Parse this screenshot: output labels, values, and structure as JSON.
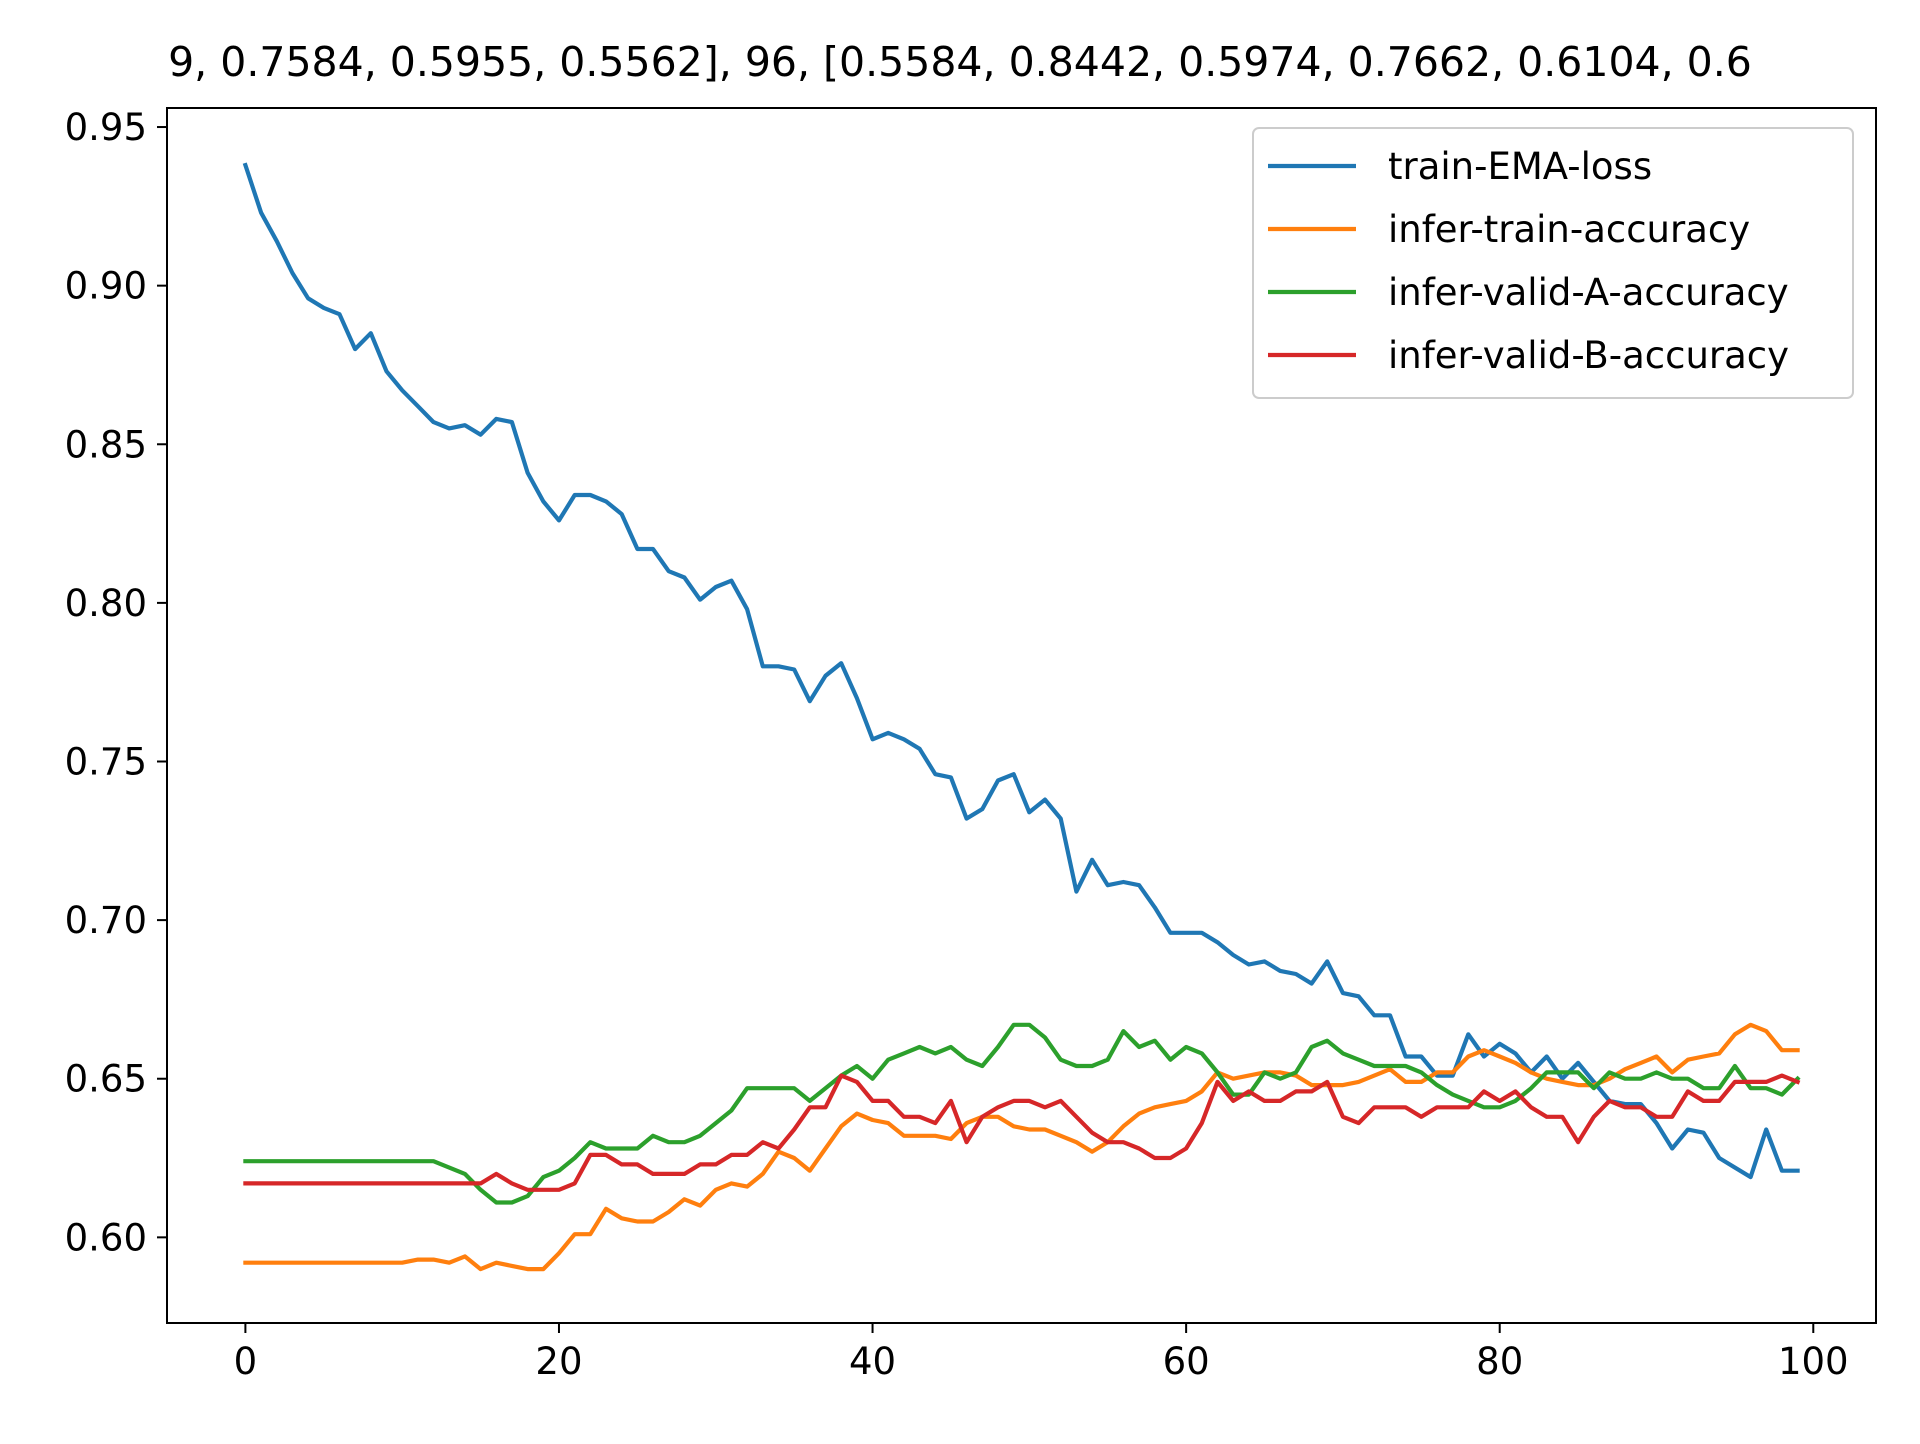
{
  "colors": {
    "series": [
      "#1f77b4",
      "#ff7f0e",
      "#2ca02c",
      "#d62728"
    ],
    "axis": "#000000",
    "legend_border": "#cccccc",
    "background": "#ffffff"
  },
  "chart_data": {
    "type": "line",
    "title": "9, 0.7584, 0.5955, 0.5562], 96, [0.5584, 0.8442, 0.5974, 0.7662, 0.6104, 0.6",
    "xlabel": "",
    "ylabel": "",
    "xlim": [
      -5,
      104
    ],
    "ylim": [
      0.573,
      0.956
    ],
    "xticks": [
      0,
      20,
      40,
      60,
      80,
      100
    ],
    "xtick_labels": [
      "0",
      "20",
      "40",
      "60",
      "80",
      "100"
    ],
    "yticks": [
      0.6,
      0.65,
      0.7,
      0.75,
      0.8,
      0.85,
      0.9,
      0.95
    ],
    "ytick_labels": [
      "0.60",
      "0.65",
      "0.70",
      "0.75",
      "0.80",
      "0.85",
      "0.90",
      "0.95"
    ],
    "grid": false,
    "legend_position": "top-right",
    "x": [
      0,
      1,
      2,
      3,
      4,
      5,
      6,
      7,
      8,
      9,
      10,
      11,
      12,
      13,
      14,
      15,
      16,
      17,
      18,
      19,
      20,
      21,
      22,
      23,
      24,
      25,
      26,
      27,
      28,
      29,
      30,
      31,
      32,
      33,
      34,
      35,
      36,
      37,
      38,
      39,
      40,
      41,
      42,
      43,
      44,
      45,
      46,
      47,
      48,
      49,
      50,
      51,
      52,
      53,
      54,
      55,
      56,
      57,
      58,
      59,
      60,
      61,
      62,
      63,
      64,
      65,
      66,
      67,
      68,
      69,
      70,
      71,
      72,
      73,
      74,
      75,
      76,
      77,
      78,
      79,
      80,
      81,
      82,
      83,
      84,
      85,
      86,
      87,
      88,
      89,
      90,
      91,
      92,
      93,
      94,
      95,
      96,
      97,
      98,
      99
    ],
    "series": [
      {
        "name": "train-EMA-loss",
        "values": [
          0.938,
          0.923,
          0.914,
          0.904,
          0.896,
          0.893,
          0.891,
          0.88,
          0.885,
          0.873,
          0.867,
          0.862,
          0.857,
          0.855,
          0.856,
          0.853,
          0.858,
          0.857,
          0.841,
          0.832,
          0.826,
          0.834,
          0.834,
          0.832,
          0.828,
          0.817,
          0.817,
          0.81,
          0.808,
          0.801,
          0.805,
          0.807,
          0.798,
          0.78,
          0.78,
          0.779,
          0.769,
          0.777,
          0.781,
          0.77,
          0.757,
          0.759,
          0.757,
          0.754,
          0.746,
          0.745,
          0.732,
          0.735,
          0.744,
          0.746,
          0.734,
          0.738,
          0.732,
          0.709,
          0.719,
          0.711,
          0.712,
          0.711,
          0.704,
          0.696,
          0.696,
          0.696,
          0.693,
          0.689,
          0.686,
          0.687,
          0.684,
          0.683,
          0.68,
          0.687,
          0.677,
          0.676,
          0.67,
          0.67,
          0.657,
          0.657,
          0.651,
          0.651,
          0.664,
          0.657,
          0.661,
          0.658,
          0.652,
          0.657,
          0.65,
          0.655,
          0.649,
          0.643,
          0.642,
          0.642,
          0.636,
          0.628,
          0.634,
          0.633,
          0.625,
          0.622,
          0.619,
          0.634,
          0.621,
          0.621
        ]
      },
      {
        "name": "infer-train-accuracy",
        "values": [
          0.592,
          0.592,
          0.592,
          0.592,
          0.592,
          0.592,
          0.592,
          0.592,
          0.592,
          0.592,
          0.592,
          0.593,
          0.593,
          0.592,
          0.594,
          0.59,
          0.592,
          0.591,
          0.59,
          0.59,
          0.595,
          0.601,
          0.601,
          0.609,
          0.606,
          0.605,
          0.605,
          0.608,
          0.612,
          0.61,
          0.615,
          0.617,
          0.616,
          0.62,
          0.627,
          0.625,
          0.621,
          0.628,
          0.635,
          0.639,
          0.637,
          0.636,
          0.632,
          0.632,
          0.632,
          0.631,
          0.636,
          0.638,
          0.638,
          0.635,
          0.634,
          0.634,
          0.632,
          0.63,
          0.627,
          0.63,
          0.635,
          0.639,
          0.641,
          0.642,
          0.643,
          0.646,
          0.652,
          0.65,
          0.651,
          0.652,
          0.652,
          0.651,
          0.648,
          0.648,
          0.648,
          0.649,
          0.651,
          0.653,
          0.649,
          0.649,
          0.652,
          0.652,
          0.657,
          0.659,
          0.657,
          0.655,
          0.652,
          0.65,
          0.649,
          0.648,
          0.648,
          0.65,
          0.653,
          0.655,
          0.657,
          0.652,
          0.656,
          0.657,
          0.658,
          0.664,
          0.667,
          0.665,
          0.659,
          0.659
        ]
      },
      {
        "name": "infer-valid-A-accuracy",
        "values": [
          0.624,
          0.624,
          0.624,
          0.624,
          0.624,
          0.624,
          0.624,
          0.624,
          0.624,
          0.624,
          0.624,
          0.624,
          0.624,
          0.622,
          0.62,
          0.615,
          0.611,
          0.611,
          0.613,
          0.619,
          0.621,
          0.625,
          0.63,
          0.628,
          0.628,
          0.628,
          0.632,
          0.63,
          0.63,
          0.632,
          0.636,
          0.64,
          0.647,
          0.647,
          0.647,
          0.647,
          0.643,
          0.647,
          0.651,
          0.654,
          0.65,
          0.656,
          0.658,
          0.66,
          0.658,
          0.66,
          0.656,
          0.654,
          0.66,
          0.667,
          0.667,
          0.663,
          0.656,
          0.654,
          0.654,
          0.656,
          0.665,
          0.66,
          0.662,
          0.656,
          0.66,
          0.658,
          0.652,
          0.645,
          0.645,
          0.652,
          0.65,
          0.652,
          0.66,
          0.662,
          0.658,
          0.656,
          0.654,
          0.654,
          0.654,
          0.652,
          0.648,
          0.645,
          0.643,
          0.641,
          0.641,
          0.643,
          0.647,
          0.652,
          0.652,
          0.652,
          0.647,
          0.652,
          0.65,
          0.65,
          0.652,
          0.65,
          0.65,
          0.647,
          0.647,
          0.654,
          0.647,
          0.647,
          0.645,
          0.65
        ]
      },
      {
        "name": "infer-valid-B-accuracy",
        "values": [
          0.617,
          0.617,
          0.617,
          0.617,
          0.617,
          0.617,
          0.617,
          0.617,
          0.617,
          0.617,
          0.617,
          0.617,
          0.617,
          0.617,
          0.617,
          0.617,
          0.62,
          0.617,
          0.615,
          0.615,
          0.615,
          0.617,
          0.626,
          0.626,
          0.623,
          0.623,
          0.62,
          0.62,
          0.62,
          0.623,
          0.623,
          0.626,
          0.626,
          0.63,
          0.628,
          0.634,
          0.641,
          0.641,
          0.651,
          0.649,
          0.643,
          0.643,
          0.638,
          0.638,
          0.636,
          0.643,
          0.63,
          0.638,
          0.641,
          0.643,
          0.643,
          0.641,
          0.643,
          0.638,
          0.633,
          0.63,
          0.63,
          0.628,
          0.625,
          0.625,
          0.628,
          0.636,
          0.649,
          0.643,
          0.646,
          0.643,
          0.643,
          0.646,
          0.646,
          0.649,
          0.638,
          0.636,
          0.641,
          0.641,
          0.641,
          0.638,
          0.641,
          0.641,
          0.641,
          0.646,
          0.643,
          0.646,
          0.641,
          0.638,
          0.638,
          0.63,
          0.638,
          0.643,
          0.641,
          0.641,
          0.638,
          0.638,
          0.646,
          0.643,
          0.643,
          0.649,
          0.649,
          0.649,
          0.651,
          0.649
        ]
      }
    ]
  }
}
